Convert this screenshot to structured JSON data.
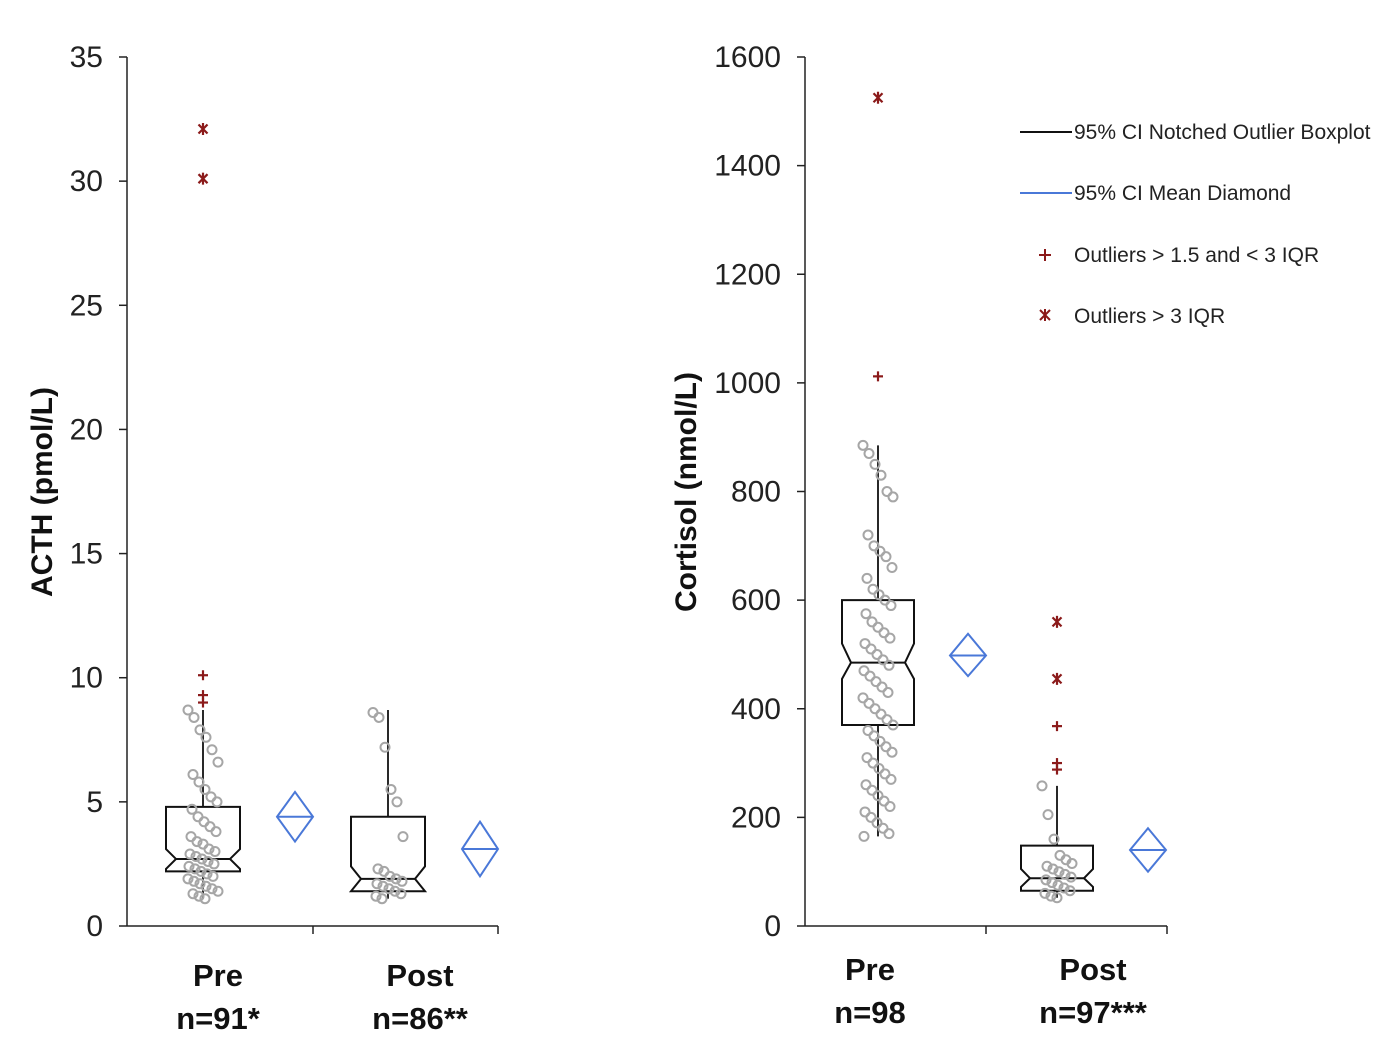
{
  "colors": {
    "axis": "#222222",
    "box": "#111111",
    "points": "#a6a6a6",
    "diamond": "#4a78d8",
    "outlier": "#8b1a1a"
  },
  "legend": {
    "items": [
      {
        "label": "95% CI Notched Outlier Boxplot",
        "symbol": "black-line"
      },
      {
        "label": "95% CI Mean Diamond",
        "symbol": "blue-line"
      },
      {
        "label": "Outliers > 1.5 and < 3 IQR",
        "symbol": "plus"
      },
      {
        "label": "Outliers > 3 IQR",
        "symbol": "asterisk"
      }
    ]
  },
  "chart_data": [
    {
      "type": "box",
      "ylabel": "ACTH (pmol/L)",
      "ylim": [
        0,
        35
      ],
      "yticks": [
        0,
        5,
        10,
        15,
        20,
        25,
        30,
        35
      ],
      "categories": [
        {
          "name": "Pre",
          "n_label": "n=91*",
          "box": {
            "q1": 2.2,
            "median": 2.7,
            "q3": 4.8,
            "whisker_low": 1.1,
            "whisker_high": 8.7,
            "notch_low": 2.3,
            "notch_high": 3.1
          },
          "mean_diamond": {
            "mean": 4.4,
            "ci_low": 3.4,
            "ci_high": 5.4
          },
          "outliers_mild": [
            10.1,
            9.3,
            9.0
          ],
          "outliers_extreme": [
            32.1,
            30.1
          ],
          "points": [
            8.7,
            8.4,
            7.9,
            7.6,
            7.1,
            6.6,
            6.1,
            5.8,
            5.5,
            5.2,
            5.0,
            4.7,
            4.4,
            4.2,
            4.0,
            3.8,
            3.6,
            3.4,
            3.3,
            3.1,
            3.0,
            2.9,
            2.8,
            2.7,
            2.6,
            2.5,
            2.4,
            2.3,
            2.2,
            2.1,
            2.0,
            1.9,
            1.8,
            1.7,
            1.6,
            1.5,
            1.4,
            1.3,
            1.2,
            1.1
          ]
        },
        {
          "name": "Post",
          "n_label": "n=86**",
          "box": {
            "q1": 1.4,
            "median": 1.9,
            "q3": 4.4,
            "whisker_low": 1.1,
            "whisker_high": 8.7,
            "notch_low": 1.4,
            "notch_high": 2.4
          },
          "mean_diamond": {
            "mean": 3.1,
            "ci_low": 2.0,
            "ci_high": 4.2
          },
          "outliers_mild": [],
          "outliers_extreme": [],
          "points": [
            8.6,
            8.4,
            7.2,
            5.5,
            5.0,
            3.6,
            2.3,
            2.2,
            2.0,
            1.9,
            1.8,
            1.7,
            1.6,
            1.5,
            1.4,
            1.3,
            1.2,
            1.1
          ]
        }
      ]
    },
    {
      "type": "box",
      "ylabel": "Cortisol (nmol/L)",
      "ylim": [
        0,
        1600
      ],
      "yticks": [
        0,
        200,
        400,
        600,
        800,
        1000,
        1200,
        1400,
        1600
      ],
      "categories": [
        {
          "name": "Pre",
          "n_label": "n=98",
          "box": {
            "q1": 370,
            "median": 485,
            "q3": 600,
            "whisker_low": 165,
            "whisker_high": 885,
            "notch_low": 455,
            "notch_high": 520
          },
          "mean_diamond": {
            "mean": 498,
            "ci_low": 460,
            "ci_high": 538
          },
          "outliers_mild": [
            1012
          ],
          "outliers_extreme": [
            1525
          ],
          "points": [
            885,
            870,
            850,
            830,
            800,
            790,
            720,
            700,
            690,
            680,
            660,
            640,
            620,
            610,
            600,
            590,
            575,
            560,
            550,
            540,
            530,
            520,
            510,
            500,
            490,
            480,
            470,
            460,
            450,
            440,
            430,
            420,
            410,
            400,
            390,
            380,
            370,
            360,
            350,
            340,
            330,
            320,
            310,
            300,
            290,
            280,
            270,
            260,
            250,
            240,
            230,
            220,
            210,
            200,
            190,
            180,
            170,
            165
          ]
        },
        {
          "name": "Post",
          "n_label": "n=97***",
          "box": {
            "q1": 65,
            "median": 88,
            "q3": 148,
            "whisker_low": 52,
            "whisker_high": 258,
            "notch_low": 72,
            "notch_high": 105
          },
          "mean_diamond": {
            "mean": 140,
            "ci_low": 100,
            "ci_high": 180
          },
          "outliers_mild": [
            368,
            300,
            288
          ],
          "outliers_extreme": [
            560,
            455
          ],
          "points": [
            258,
            205,
            160,
            130,
            122,
            115,
            110,
            105,
            100,
            95,
            90,
            85,
            80,
            75,
            70,
            65,
            60,
            55,
            52
          ]
        }
      ]
    }
  ]
}
